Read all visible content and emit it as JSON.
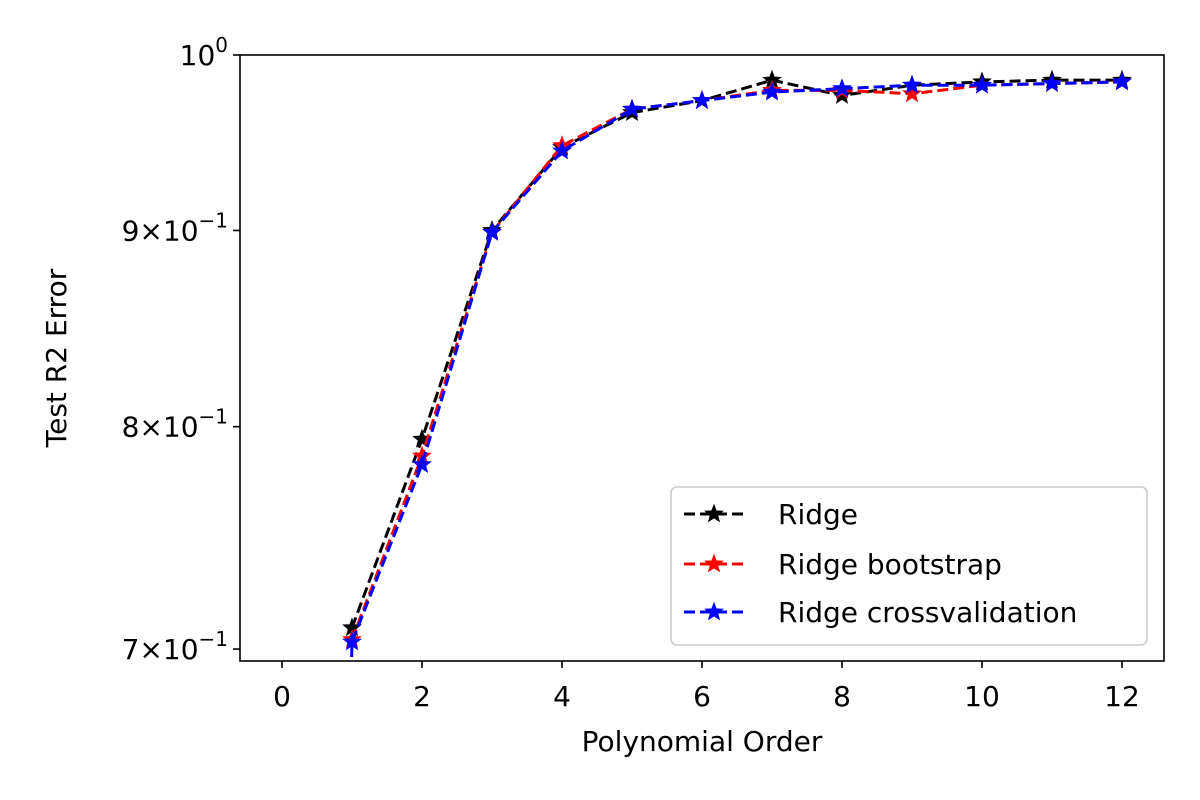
{
  "chart_data": {
    "type": "line",
    "xlabel": "Polynomial Order",
    "ylabel": "Test R2 Error",
    "xlim": [
      -0.6,
      12.6
    ],
    "ylim": [
      0.695,
      1.0
    ],
    "yscale": "log",
    "grid": false,
    "legend_position": "bottom-right",
    "x_ticks": [
      0,
      2,
      4,
      6,
      8,
      10,
      12
    ],
    "x_tick_labels": [
      "0",
      "2",
      "4",
      "6",
      "8",
      "10",
      "12"
    ],
    "y_ticks": [
      {
        "value": 1.0,
        "mantissa": "",
        "exponent": "0",
        "base": "10"
      },
      {
        "value": 0.9,
        "mantissa": "9",
        "exponent": "−1",
        "base": "10"
      },
      {
        "value": 0.8,
        "mantissa": "8",
        "exponent": "−1",
        "base": "10"
      },
      {
        "value": 0.7,
        "mantissa": "7",
        "exponent": "−1",
        "base": "10"
      }
    ],
    "series": [
      {
        "name": "Ridge",
        "color": "#000000",
        "marker": "star",
        "linestyle": "dashed",
        "x": [
          1,
          2,
          3,
          4,
          5,
          6,
          7,
          8,
          9,
          10,
          11,
          12
        ],
        "y": [
          0.709,
          0.794,
          0.9,
          0.946,
          0.966,
          0.973,
          0.985,
          0.976,
          0.982,
          0.984,
          0.985,
          0.985
        ]
      },
      {
        "name": "Ridge bootstrap",
        "color": "#ff0000",
        "marker": "star",
        "linestyle": "dashed",
        "x": [
          1,
          2,
          3,
          4,
          5,
          6,
          7,
          8,
          9,
          10,
          11,
          12
        ],
        "y": [
          0.704,
          0.786,
          0.899,
          0.947,
          0.968,
          0.973,
          0.979,
          0.979,
          0.977,
          0.982,
          0.983,
          0.984
        ]
      },
      {
        "name": "Ridge crossvalidation",
        "color": "#0000ff",
        "marker": "star",
        "linestyle": "dashed",
        "x": [
          0.99,
          1,
          2,
          3,
          4,
          5,
          6,
          7,
          8,
          9,
          10,
          11,
          12
        ],
        "y": [
          0.69,
          0.703,
          0.782,
          0.899,
          0.944,
          0.968,
          0.973,
          0.978,
          0.98,
          0.982,
          0.982,
          0.983,
          0.984
        ]
      }
    ]
  }
}
